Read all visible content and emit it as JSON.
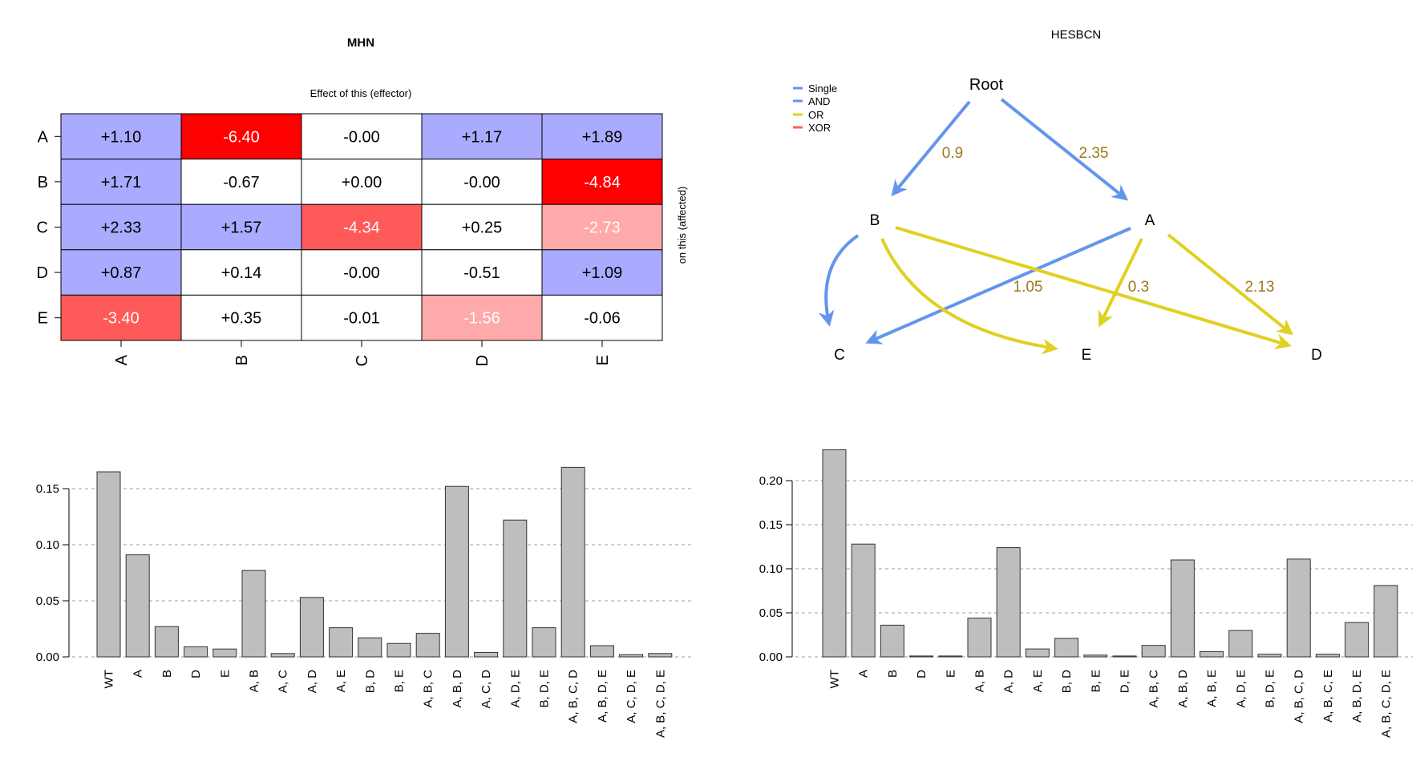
{
  "chart_data": [
    {
      "type": "heatmap",
      "title": "MHN",
      "xlabel": "Effect of this (effector)",
      "ylabel": "on this (affected)",
      "rows": [
        "A",
        "B",
        "C",
        "D",
        "E"
      ],
      "cols": [
        "A",
        "B",
        "C",
        "D",
        "E"
      ],
      "cells": [
        [
          "+1.10",
          "-6.40",
          "-0.00",
          "+1.17",
          "+1.89"
        ],
        [
          "+1.71",
          "-0.67",
          "+0.00",
          "-0.00",
          "-4.84"
        ],
        [
          "+2.33",
          "+1.57",
          "-4.34",
          "+0.25",
          "-2.73"
        ],
        [
          "+0.87",
          "+0.14",
          "-0.00",
          "-0.51",
          "+1.09"
        ],
        [
          "-3.40",
          "+0.35",
          "-0.01",
          "-1.56",
          "-0.06"
        ]
      ],
      "colors": {
        "positive": "#aaaaff",
        "strong_negative": "#ff0000",
        "mid_negative": "#ff5a5a",
        "weak_negative": "#ffaaaa",
        "neutral": "#ffffff"
      }
    },
    {
      "type": "diagram",
      "title": "HESBCN",
      "legend": [
        {
          "label": "Single",
          "color": "#6495ed"
        },
        {
          "label": "AND",
          "color": "#6495ed"
        },
        {
          "label": "OR",
          "color": "#e0d020"
        },
        {
          "label": "XOR",
          "color": "#ff6347"
        }
      ],
      "nodes": [
        "Root",
        "B",
        "A",
        "C",
        "E",
        "D"
      ],
      "edges": [
        {
          "from": "Root",
          "to": "B",
          "type": "Single",
          "label": "0.9"
        },
        {
          "from": "Root",
          "to": "A",
          "type": "Single",
          "label": "2.35"
        },
        {
          "from": "B",
          "to": "C",
          "type": "Single",
          "label": ""
        },
        {
          "from": "A",
          "to": "C",
          "type": "Single",
          "label": "1.05"
        },
        {
          "from": "B",
          "to": "E",
          "type": "OR",
          "label": ""
        },
        {
          "from": "A",
          "to": "E",
          "type": "OR",
          "label": "0.3"
        },
        {
          "from": "B",
          "to": "D",
          "type": "OR",
          "label": ""
        },
        {
          "from": "A",
          "to": "D",
          "type": "OR",
          "label": "2.13"
        }
      ],
      "edge_label_color": "#9b7a1a"
    },
    {
      "type": "bar",
      "categories": [
        "WT",
        "A",
        "B",
        "D",
        "E",
        "A, B",
        "A, C",
        "A, D",
        "A, E",
        "B, D",
        "B, E",
        "A, B, C",
        "A, B, D",
        "A, C, D",
        "A, D, E",
        "B, D, E",
        "A, B, C, D",
        "A, B, D, E",
        "A, C, D, E",
        "A, B, C, D, E"
      ],
      "values": [
        0.165,
        0.091,
        0.027,
        0.009,
        0.007,
        0.077,
        0.003,
        0.053,
        0.026,
        0.017,
        0.012,
        0.021,
        0.152,
        0.004,
        0.122,
        0.026,
        0.169,
        0.01,
        0.002,
        0.003
      ],
      "yticks": [
        "0.00",
        "0.05",
        "0.10",
        "0.15"
      ],
      "ylim": [
        0,
        0.18
      ],
      "grid": "horizontal dashed"
    },
    {
      "type": "bar",
      "categories": [
        "WT",
        "A",
        "B",
        "D",
        "E",
        "A, B",
        "A, D",
        "A, E",
        "B, D",
        "B, E",
        "D, E",
        "A, B, C",
        "A, B, D",
        "A, B, E",
        "A, D, E",
        "B, D, E",
        "A, B, C, D",
        "A, B, C, E",
        "A, B, D, E",
        "A, B, C, D, E"
      ],
      "values": [
        0.235,
        0.128,
        0.036,
        0.001,
        0.001,
        0.044,
        0.124,
        0.009,
        0.021,
        0.002,
        0.001,
        0.013,
        0.11,
        0.006,
        0.03,
        0.003,
        0.111,
        0.003,
        0.039,
        0.081
      ],
      "yticks": [
        "0.00",
        "0.05",
        "0.10",
        "0.15",
        "0.20"
      ],
      "ylim": [
        0,
        0.24
      ],
      "grid": "horizontal dashed"
    }
  ]
}
